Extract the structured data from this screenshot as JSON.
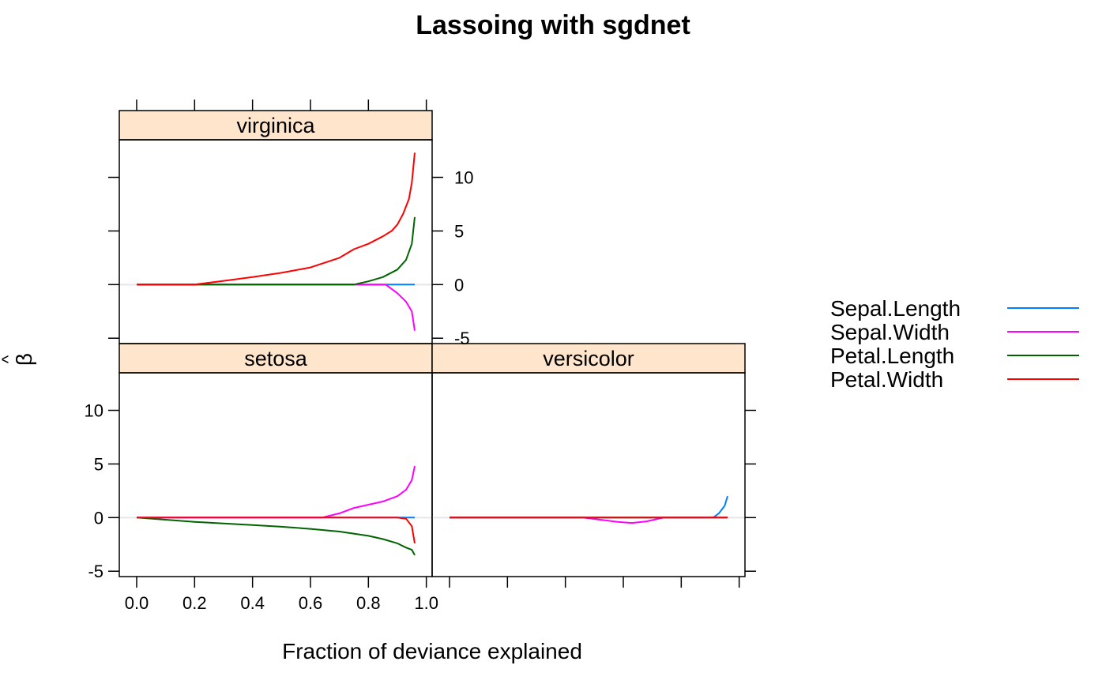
{
  "title": "Lassoing with sgdnet",
  "xlabel": "Fraction of deviance explained",
  "ylabel": "β",
  "ylabel_hat": "^",
  "strip_color": "#ffe5cc",
  "zero_line_color": "#e6e6e6",
  "legend": {
    "placement": "right",
    "items": [
      {
        "label": "Sepal.Length",
        "color": "#0080ff"
      },
      {
        "label": "Sepal.Width",
        "color": "#ff00ff"
      },
      {
        "label": "Petal.Length",
        "color": "#006400"
      },
      {
        "label": "Petal.Width",
        "color": "#ff0000"
      }
    ]
  },
  "chart_data": {
    "type": "line",
    "layout": "trellis 2x2 panels",
    "xlim": [
      -0.06,
      1.02
    ],
    "ylim": [
      -5.5,
      13.5
    ],
    "x_ticks": [
      0.0,
      0.2,
      0.4,
      0.6,
      0.8,
      1.0
    ],
    "x_tick_labels": [
      "0.0",
      "0.2",
      "0.4",
      "0.6",
      "0.8",
      "1.0"
    ],
    "y_ticks": [
      -5,
      0,
      5,
      10
    ],
    "y_tick_labels": [
      "-5",
      "0",
      "5",
      "10"
    ],
    "series_names": [
      "Sepal.Length",
      "Sepal.Width",
      "Petal.Length",
      "Petal.Width"
    ],
    "panels": [
      {
        "name": "setosa",
        "series": [
          {
            "name": "Sepal.Length",
            "x": [
              0,
              0.93,
              0.96
            ],
            "y": [
              0,
              0,
              0
            ]
          },
          {
            "name": "Sepal.Width",
            "x": [
              0,
              0.64,
              0.7,
              0.75,
              0.8,
              0.85,
              0.9,
              0.93,
              0.95,
              0.96
            ],
            "y": [
              0,
              0,
              0.4,
              0.9,
              1.2,
              1.5,
              2.0,
              2.6,
              3.5,
              4.8
            ]
          },
          {
            "name": "Petal.Length",
            "x": [
              0,
              0.1,
              0.2,
              0.3,
              0.4,
              0.5,
              0.6,
              0.7,
              0.8,
              0.85,
              0.9,
              0.93,
              0.95,
              0.96
            ],
            "y": [
              0,
              -0.2,
              -0.4,
              -0.55,
              -0.7,
              -0.85,
              -1.05,
              -1.3,
              -1.7,
              -2.0,
              -2.4,
              -2.8,
              -3.0,
              -3.5
            ]
          },
          {
            "name": "Petal.Width",
            "x": [
              0,
              0.9,
              0.93,
              0.95,
              0.96
            ],
            "y": [
              0,
              0,
              -0.1,
              -0.8,
              -2.4
            ]
          }
        ]
      },
      {
        "name": "versicolor",
        "series": [
          {
            "name": "Sepal.Length",
            "x": [
              0,
              0.91,
              0.93,
              0.95,
              0.96
            ],
            "y": [
              0,
              0,
              0.4,
              1.1,
              2.0
            ]
          },
          {
            "name": "Sepal.Width",
            "x": [
              0,
              0.46,
              0.52,
              0.58,
              0.63,
              0.68,
              0.74,
              0.96
            ],
            "y": [
              0,
              0,
              -0.2,
              -0.4,
              -0.5,
              -0.35,
              0,
              0
            ]
          },
          {
            "name": "Petal.Length",
            "x": [
              0,
              0.96
            ],
            "y": [
              0,
              0
            ]
          },
          {
            "name": "Petal.Width",
            "x": [
              0,
              0.96
            ],
            "y": [
              0,
              0
            ]
          }
        ]
      },
      {
        "name": "virginica",
        "series": [
          {
            "name": "Sepal.Length",
            "x": [
              0,
              0.96
            ],
            "y": [
              0,
              0
            ]
          },
          {
            "name": "Sepal.Width",
            "x": [
              0,
              0.86,
              0.9,
              0.93,
              0.95,
              0.96
            ],
            "y": [
              0,
              0,
              -0.8,
              -1.6,
              -2.5,
              -4.3
            ]
          },
          {
            "name": "Petal.Length",
            "x": [
              0,
              0.75,
              0.8,
              0.85,
              0.9,
              0.93,
              0.95,
              0.96
            ],
            "y": [
              0,
              0,
              0.3,
              0.7,
              1.4,
              2.3,
              3.8,
              6.3
            ]
          },
          {
            "name": "Petal.Width",
            "x": [
              0,
              0.2,
              0.3,
              0.4,
              0.5,
              0.6,
              0.7,
              0.75,
              0.8,
              0.85,
              0.88,
              0.9,
              0.92,
              0.94,
              0.95,
              0.96
            ],
            "y": [
              0,
              0,
              0.35,
              0.7,
              1.1,
              1.6,
              2.5,
              3.3,
              3.8,
              4.5,
              5.0,
              5.6,
              6.6,
              8.0,
              9.5,
              12.3
            ]
          }
        ]
      }
    ]
  }
}
